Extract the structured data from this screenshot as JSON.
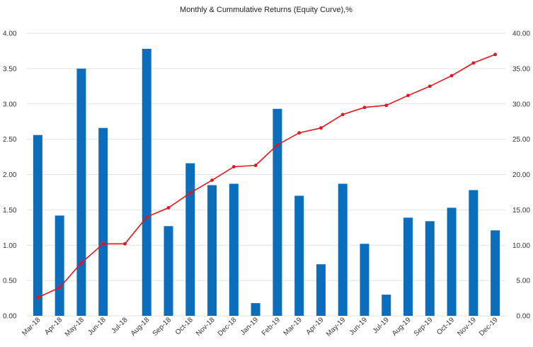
{
  "chart_data": {
    "type": "bar",
    "title": "Monthly & Cummulative Returns (Equity Curve),%",
    "categories": [
      "Mar-18",
      "Apr-18",
      "May-18",
      "Jun-18",
      "Jul-18",
      "Aug-18",
      "Sep-18",
      "Oct-18",
      "Nov-18",
      "Dec-18",
      "Jan-19",
      "Feb-19",
      "Mar-19",
      "Apr-19",
      "May-19",
      "Jun-19",
      "Jul-19",
      "Aug-19",
      "Sep-19",
      "Oct-19",
      "Nov-19",
      "Dec-19"
    ],
    "series": [
      {
        "type": "bar",
        "axis": "left",
        "color": "#0a6ebd",
        "values": [
          2.56,
          1.42,
          3.5,
          2.66,
          0.0,
          3.78,
          1.27,
          2.16,
          1.85,
          1.87,
          0.18,
          2.93,
          1.7,
          0.73,
          1.87,
          1.02,
          0.3,
          1.39,
          1.34,
          1.53,
          1.78,
          1.21
        ]
      },
      {
        "type": "line",
        "axis": "right",
        "color": "#e8141c",
        "values": [
          2.6,
          4.0,
          7.5,
          10.2,
          10.2,
          14.0,
          15.3,
          17.4,
          19.2,
          21.1,
          21.3,
          24.2,
          25.9,
          26.6,
          28.5,
          29.5,
          29.8,
          31.2,
          32.5,
          34.0,
          35.8,
          37.0
        ]
      }
    ],
    "ylim_left": [
      0,
      4
    ],
    "ylim_right": [
      0,
      40
    ],
    "yticks_left": [
      "0.00",
      "0.50",
      "1.00",
      "1.50",
      "2.00",
      "2.50",
      "3.00",
      "3.50",
      "4.00"
    ],
    "yticks_right": [
      "0.00",
      "5.00",
      "10.00",
      "15.00",
      "20.00",
      "25.00",
      "30.00",
      "35.00",
      "40.00"
    ],
    "grid": true
  }
}
